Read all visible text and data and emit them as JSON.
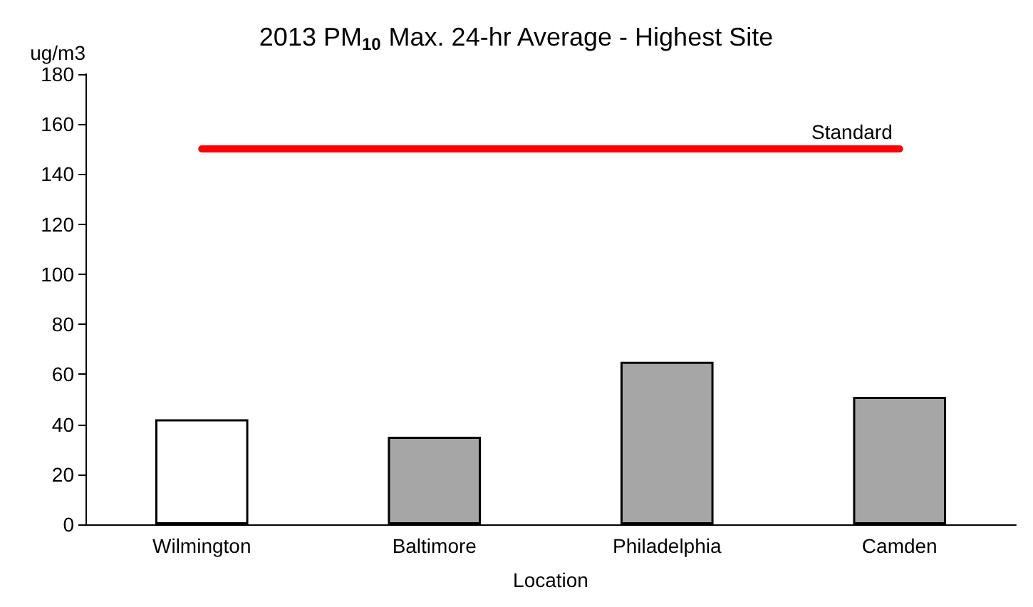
{
  "chart_data": {
    "type": "bar",
    "title": "2013 PM$_{10}$ Max. 24-hr Average - Highest Site",
    "ylabel": "ug/m3",
    "xlabel": "Location",
    "categories": [
      "Wilmington",
      "Baltimore",
      "Philadelphia",
      "Camden"
    ],
    "values": [
      42,
      35,
      65,
      51
    ],
    "colors": [
      "#ffffff",
      "#a6a6a6",
      "#a6a6a6",
      "#a6a6a6"
    ],
    "ylim": [
      0,
      180
    ],
    "yticks": [
      0,
      20,
      40,
      60,
      80,
      100,
      120,
      140,
      160,
      180
    ],
    "grid": false,
    "ref_lines": [
      {
        "axis": "y",
        "value": 150,
        "label": "Standard",
        "color": "#ff0000"
      }
    ]
  }
}
